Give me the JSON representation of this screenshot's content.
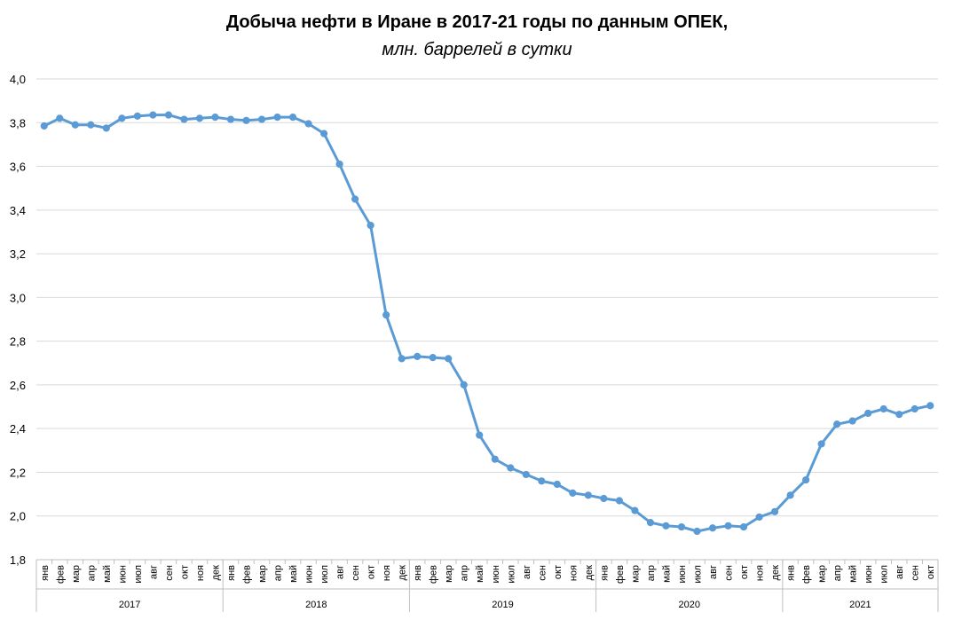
{
  "chart_data": {
    "type": "line",
    "title": "Добыча нефти в Иране в 2017-21 годы по данным ОПЕК,",
    "subtitle": "млн. баррелей в сутки",
    "xlabel": "",
    "ylabel": "",
    "ylim": [
      1.8,
      4.0
    ],
    "yticks": [
      "1,8",
      "2,0",
      "2,2",
      "2,4",
      "2,6",
      "2,8",
      "3,0",
      "3,2",
      "3,4",
      "3,6",
      "3,8",
      "4,0"
    ],
    "grid": true,
    "legend": "none",
    "color": "#5b9bd5",
    "months": [
      "янв",
      "фев",
      "мар",
      "апр",
      "май",
      "июн",
      "июл",
      "авг",
      "сен",
      "окт",
      "ноя",
      "дек"
    ],
    "years": [
      "2017",
      "2018",
      "2019",
      "2020",
      "2021"
    ],
    "series": [
      {
        "values": [
          3.785,
          3.82,
          3.79,
          3.79,
          3.775,
          3.82,
          3.83,
          3.835,
          3.835,
          3.815,
          3.82,
          3.825,
          3.815,
          3.81,
          3.815,
          3.825,
          3.825,
          3.795,
          3.75,
          3.61,
          3.45,
          3.33,
          2.92,
          2.72,
          2.73,
          2.725,
          2.72,
          2.6,
          2.37,
          2.26,
          2.22,
          2.19,
          2.16,
          2.145,
          2.105,
          2.095,
          2.08,
          2.07,
          2.025,
          1.97,
          1.955,
          1.95,
          1.93,
          1.945,
          1.955,
          1.95,
          1.995,
          2.02,
          2.095,
          2.165,
          2.33,
          2.42,
          2.435,
          2.47,
          2.49,
          2.465,
          2.49,
          2.505
        ]
      }
    ]
  }
}
